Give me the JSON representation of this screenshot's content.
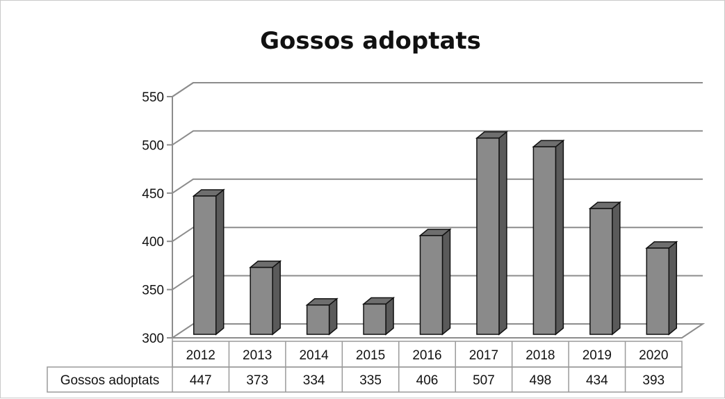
{
  "chart_data": {
    "type": "bar",
    "title": "Gossos adoptats",
    "xlabel": "",
    "ylabel": "",
    "categories": [
      "2012",
      "2013",
      "2014",
      "2015",
      "2016",
      "2017",
      "2018",
      "2019",
      "2020"
    ],
    "series": [
      {
        "name": "Gossos adoptats",
        "values": [
          447,
          373,
          334,
          335,
          406,
          507,
          498,
          434,
          393
        ]
      }
    ],
    "ylim": [
      300,
      550
    ],
    "yticks": [
      "300",
      "350",
      "400",
      "450",
      "500",
      "550"
    ],
    "grid": true,
    "legend": "none",
    "data_table": true,
    "colors": {
      "bar_front": "#8a8a8a",
      "bar_side": "#5a5a5a",
      "bar_top": "#6e6e6e",
      "gridline": "#8c8c8c",
      "axis": "#8c8c8c"
    },
    "three_d": true
  }
}
